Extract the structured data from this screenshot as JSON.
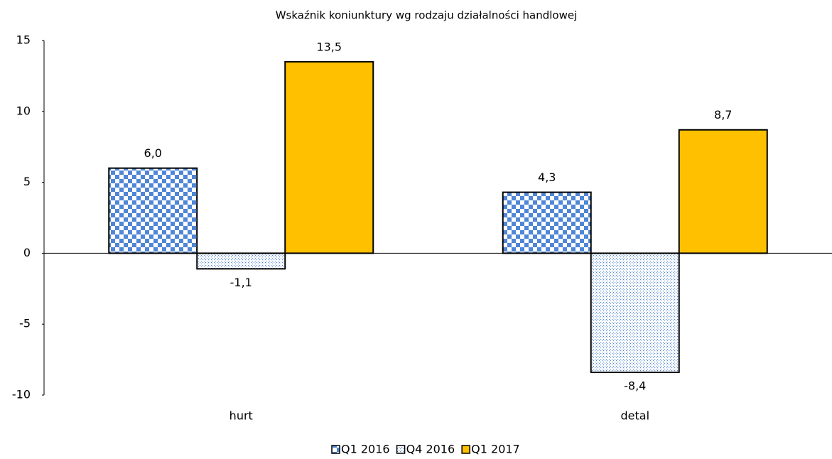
{
  "chart_data": {
    "type": "bar",
    "title": "Wskaźnik koniunktury wg rodzaju działalności handlowej",
    "categories": [
      "hurt",
      "detal"
    ],
    "series": [
      {
        "name": "Q1 2016",
        "color": "#4f86d6",
        "pattern": "checker",
        "values": [
          6.0,
          4.3
        ],
        "value_labels": [
          "6,0",
          "4,3"
        ]
      },
      {
        "name": "Q4 2016",
        "color": "#4f86d6",
        "pattern": "dots",
        "values": [
          -1.1,
          -8.4
        ],
        "value_labels": [
          "-1,1",
          "-8,4"
        ]
      },
      {
        "name": "Q1 2017",
        "color": "#ffc000",
        "pattern": "solid",
        "values": [
          13.5,
          8.7
        ],
        "value_labels": [
          "13,5",
          "8,7"
        ]
      }
    ],
    "ylim": [
      -10,
      15
    ],
    "yticks": [
      -10,
      -5,
      0,
      5,
      10,
      15
    ],
    "grid": false,
    "legend": "bottom"
  }
}
